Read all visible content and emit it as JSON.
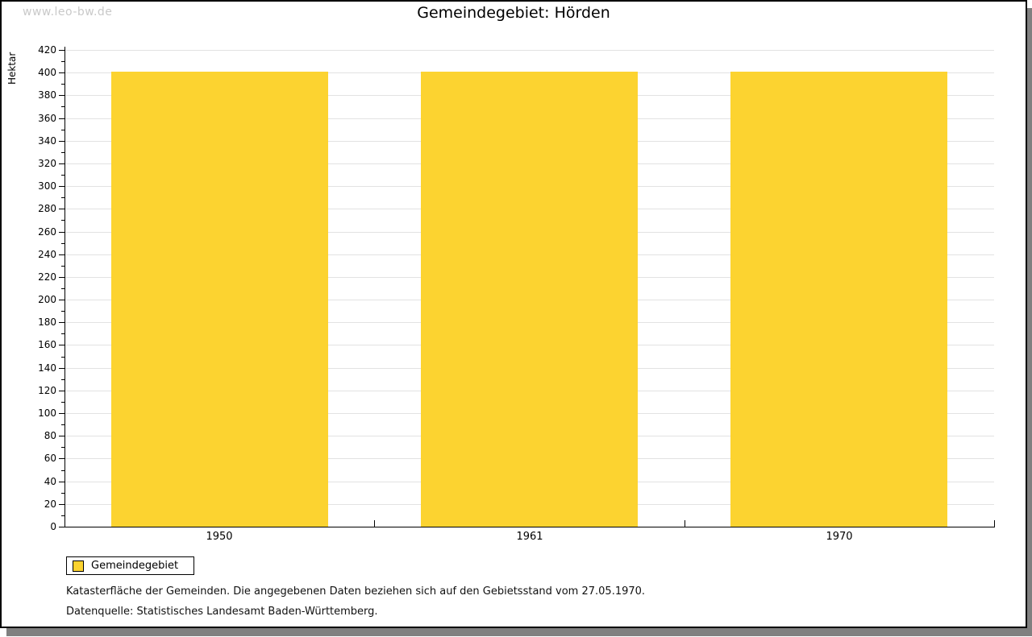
{
  "watermark": "www.leo-bw.de",
  "title": "Gemeindegebiet: Hörden",
  "chart_data": {
    "type": "bar",
    "title": "Gemeindegebiet: Hörden",
    "categories": [
      "1950",
      "1961",
      "1970"
    ],
    "series": [
      {
        "name": "Gemeindegebiet",
        "values": [
          401,
          401,
          401
        ],
        "color": "#fcd330"
      }
    ],
    "xlabel": "",
    "ylabel": "Hektar",
    "ylim": [
      0,
      420
    ],
    "y_major_step": 20,
    "y_minor_step": 10,
    "grid": "horizontal-major",
    "legend_position": "bottom-left"
  },
  "legend": {
    "items": [
      {
        "label": "Gemeindegebiet",
        "color": "#fcd330"
      }
    ]
  },
  "footer": {
    "line1": "Katasterfläche der Gemeinden. Die angegebenen Daten beziehen sich auf den Gebietsstand vom 27.05.1970.",
    "line2": "Datenquelle: Statistisches Landesamt Baden-Württemberg."
  },
  "colors": {
    "bar": "#fcd330",
    "grid": "#e2e2e2",
    "axis": "#000000",
    "watermark": "#c9c9c9",
    "shadow": "#808080"
  }
}
